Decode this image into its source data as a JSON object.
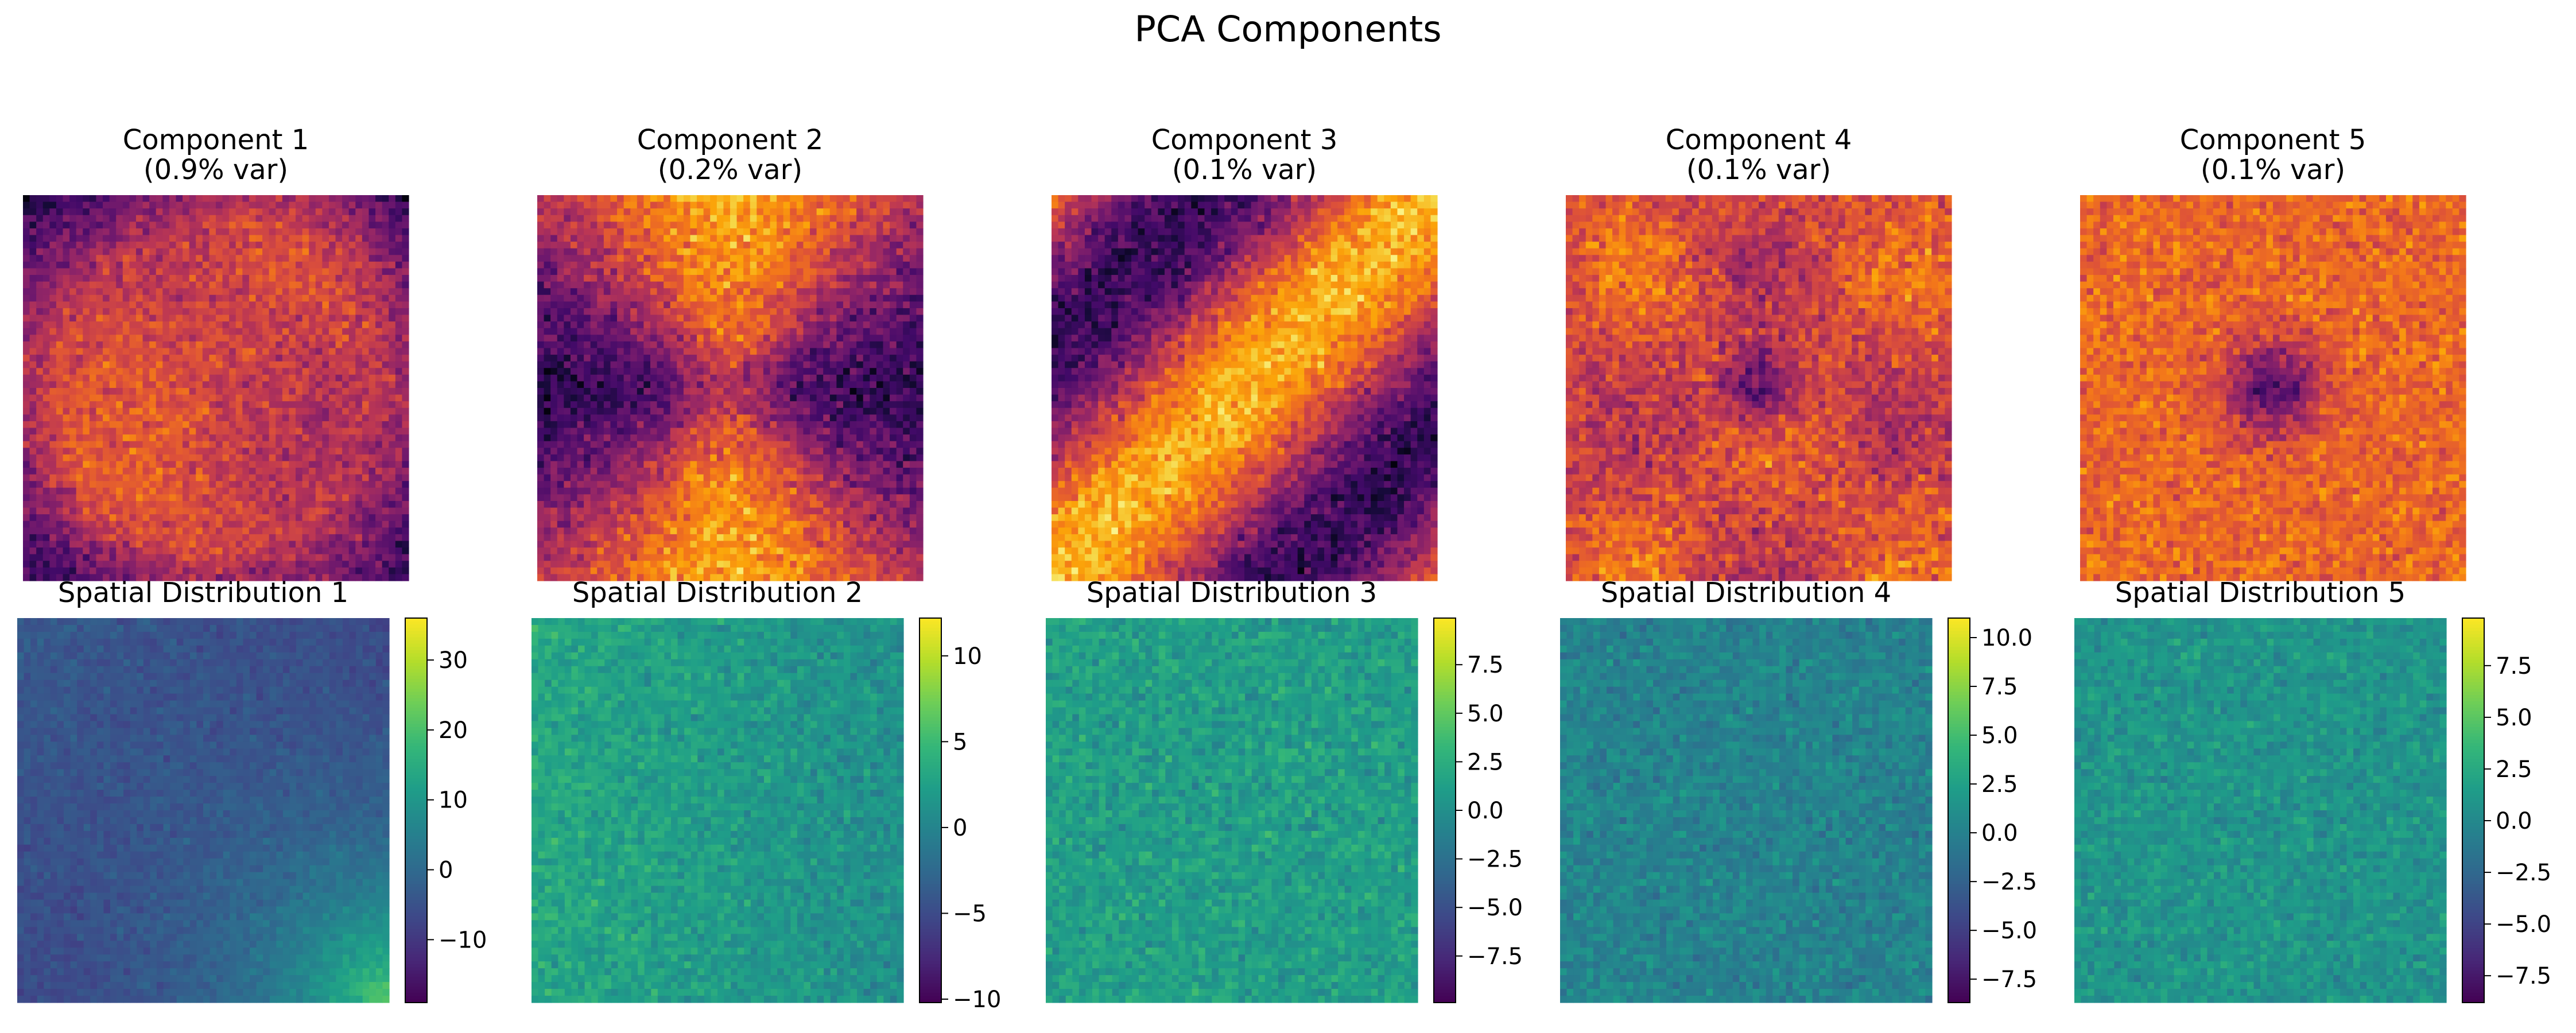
{
  "figure": {
    "title": "PCA Components"
  },
  "chart_data": {
    "type": "heatmap",
    "title": "PCA Components",
    "rows": 2,
    "cols": 5,
    "components": [
      {
        "title": "Component 1",
        "subtitle": "(0.9% var)",
        "colormap": "inferno",
        "pattern": "c1"
      },
      {
        "title": "Component 2",
        "subtitle": "(0.2% var)",
        "colormap": "inferno",
        "pattern": "c2"
      },
      {
        "title": "Component 3",
        "subtitle": "(0.1% var)",
        "colormap": "inferno",
        "pattern": "c3"
      },
      {
        "title": "Component 4",
        "subtitle": "(0.1% var)",
        "colormap": "inferno",
        "pattern": "c4"
      },
      {
        "title": "Component 5",
        "subtitle": "(0.1% var)",
        "colormap": "inferno",
        "pattern": "c5"
      }
    ],
    "spatial": [
      {
        "title": "Spatial Distribution 1",
        "colormap": "viridis",
        "vmin": -19,
        "vmax": 36,
        "ticks": [
          -10,
          0,
          10,
          20,
          30
        ],
        "tick_labels": [
          "−10",
          "0",
          "10",
          "20",
          "30"
        ],
        "pattern": "s1"
      },
      {
        "title": "Spatial Distribution 2",
        "colormap": "viridis",
        "vmin": -10.2,
        "vmax": 12.2,
        "ticks": [
          -10,
          -5,
          0,
          5,
          10
        ],
        "tick_labels": [
          "−10",
          "−5",
          "0",
          "5",
          "10"
        ],
        "pattern": "s2"
      },
      {
        "title": "Spatial Distribution 3",
        "colormap": "viridis",
        "vmin": -9.9,
        "vmax": 9.9,
        "ticks": [
          -7.5,
          -5.0,
          -2.5,
          0.0,
          2.5,
          5.0,
          7.5
        ],
        "tick_labels": [
          "−7.5",
          "−5.0",
          "−2.5",
          "0.0",
          "2.5",
          "5.0",
          "7.5"
        ],
        "pattern": "s3"
      },
      {
        "title": "Spatial Distribution 4",
        "colormap": "viridis",
        "vmin": -8.7,
        "vmax": 11.0,
        "ticks": [
          -7.5,
          -5.0,
          -2.5,
          0.0,
          2.5,
          5.0,
          7.5,
          10.0
        ],
        "tick_labels": [
          "−7.5",
          "−5.0",
          "−2.5",
          "0.0",
          "2.5",
          "5.0",
          "7.5",
          "10.0"
        ],
        "pattern": "s4"
      },
      {
        "title": "Spatial Distribution 5",
        "colormap": "viridis",
        "vmin": -8.8,
        "vmax": 9.8,
        "ticks": [
          -7.5,
          -5.0,
          -2.5,
          0.0,
          2.5,
          5.0,
          7.5
        ],
        "tick_labels": [
          "−7.5",
          "−5.0",
          "−2.5",
          "0.0",
          "2.5",
          "5.0",
          "7.5"
        ],
        "pattern": "s5"
      }
    ]
  }
}
